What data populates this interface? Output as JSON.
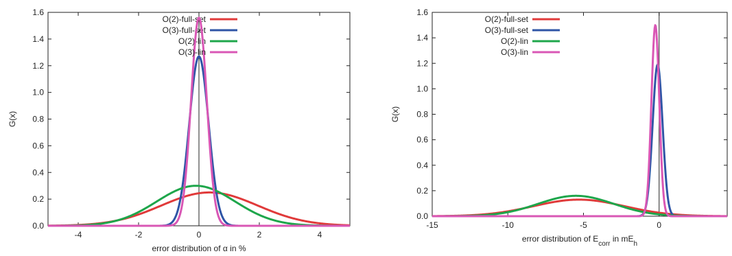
{
  "chart_data": [
    {
      "type": "line",
      "xlabel_parts": [
        "error distribution of ",
        "α",
        " in %"
      ],
      "ylabel": "G(x)",
      "xlim": [
        -5,
        5
      ],
      "ylim": [
        0,
        1.6
      ],
      "xticks": [
        -4,
        -2,
        0,
        2,
        4
      ],
      "yticks": [
        0.0,
        0.2,
        0.4,
        0.6,
        0.8,
        1.0,
        1.2,
        1.4,
        1.6
      ],
      "ytick_labels": [
        "0.0",
        "0.2",
        "0.4",
        "0.6",
        "0.8",
        "1.0",
        "1.2",
        "1.4",
        "1.6"
      ],
      "xtick_labels": [
        "-4",
        "-2",
        "0",
        "2",
        "4"
      ],
      "vline_x": 0,
      "legend_position": "top-right",
      "grid": false,
      "series": [
        {
          "name": "O(2)-full-set",
          "color": "#e03a3a",
          "mu": 0.35,
          "sigma": 1.6,
          "peak": 0.25
        },
        {
          "name": "O(3)-full-set",
          "color": "#2f55a6",
          "mu": 0.0,
          "sigma": 0.32,
          "peak": 1.27
        },
        {
          "name": "O(2)-lin",
          "color": "#1ea64b",
          "mu": -0.1,
          "sigma": 1.3,
          "peak": 0.3
        },
        {
          "name": "O(3)-lin",
          "color": "#d957b5",
          "mu": 0.0,
          "sigma": 0.26,
          "peak": 1.56
        }
      ]
    },
    {
      "type": "line",
      "xlabel_parts": [
        "error distribution of E",
        "corr",
        " in mE",
        "h"
      ],
      "ylabel": "G(x)",
      "xlim": [
        -15,
        4.5
      ],
      "ylim": [
        0,
        1.6
      ],
      "xticks": [
        -15,
        -10,
        -5,
        0
      ],
      "xtick_labels": [
        "-15",
        "-10",
        "-5",
        "0"
      ],
      "yticks": [
        0.0,
        0.2,
        0.4,
        0.6,
        0.8,
        1.0,
        1.2,
        1.4,
        1.6
      ],
      "ytick_labels": [
        "0.0",
        "0.2",
        "0.4",
        "0.6",
        "0.8",
        "1.0",
        "1.2",
        "1.4",
        "1.6"
      ],
      "vline_x": 0,
      "legend_position": "top-left",
      "grid": false,
      "series": [
        {
          "name": "O(2)-full-set",
          "color": "#e03a3a",
          "mu": -5.3,
          "sigma": 3.0,
          "peak": 0.13
        },
        {
          "name": "O(3)-full-set",
          "color": "#2f55a6",
          "mu": -0.1,
          "sigma": 0.33,
          "peak": 1.19
        },
        {
          "name": "O(2)-lin",
          "color": "#1ea64b",
          "mu": -5.5,
          "sigma": 2.5,
          "peak": 0.16
        },
        {
          "name": "O(3)-lin",
          "color": "#d957b5",
          "mu": -0.25,
          "sigma": 0.26,
          "peak": 1.5
        }
      ]
    }
  ]
}
